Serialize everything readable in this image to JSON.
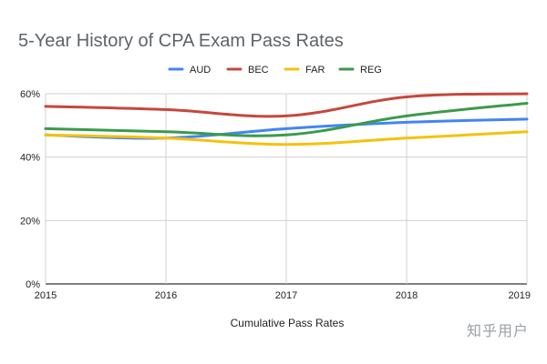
{
  "chart_data": {
    "type": "line",
    "title": "5-Year History of CPA Exam Pass Rates",
    "xlabel": "Cumulative Pass Rates",
    "ylabel": "",
    "x": [
      "2015",
      "2016",
      "2017",
      "2018",
      "2019"
    ],
    "ylim": [
      0,
      60
    ],
    "yticks": [
      0,
      20,
      40,
      60
    ],
    "ytick_labels": [
      "0%",
      "20%",
      "40%",
      "60%"
    ],
    "grid": true,
    "legend_position": "top",
    "series": [
      {
        "name": "AUD",
        "color": "#4285f4",
        "values": [
          47,
          46,
          49,
          51,
          52
        ]
      },
      {
        "name": "BEC",
        "color": "#c5483b",
        "values": [
          56,
          55,
          53,
          59,
          60
        ]
      },
      {
        "name": "FAR",
        "color": "#f4c20d",
        "values": [
          47,
          46,
          44,
          46,
          48
        ]
      },
      {
        "name": "REG",
        "color": "#3c9a4b",
        "values": [
          49,
          48,
          47,
          53,
          57
        ]
      }
    ]
  },
  "watermark": "知乎用户"
}
